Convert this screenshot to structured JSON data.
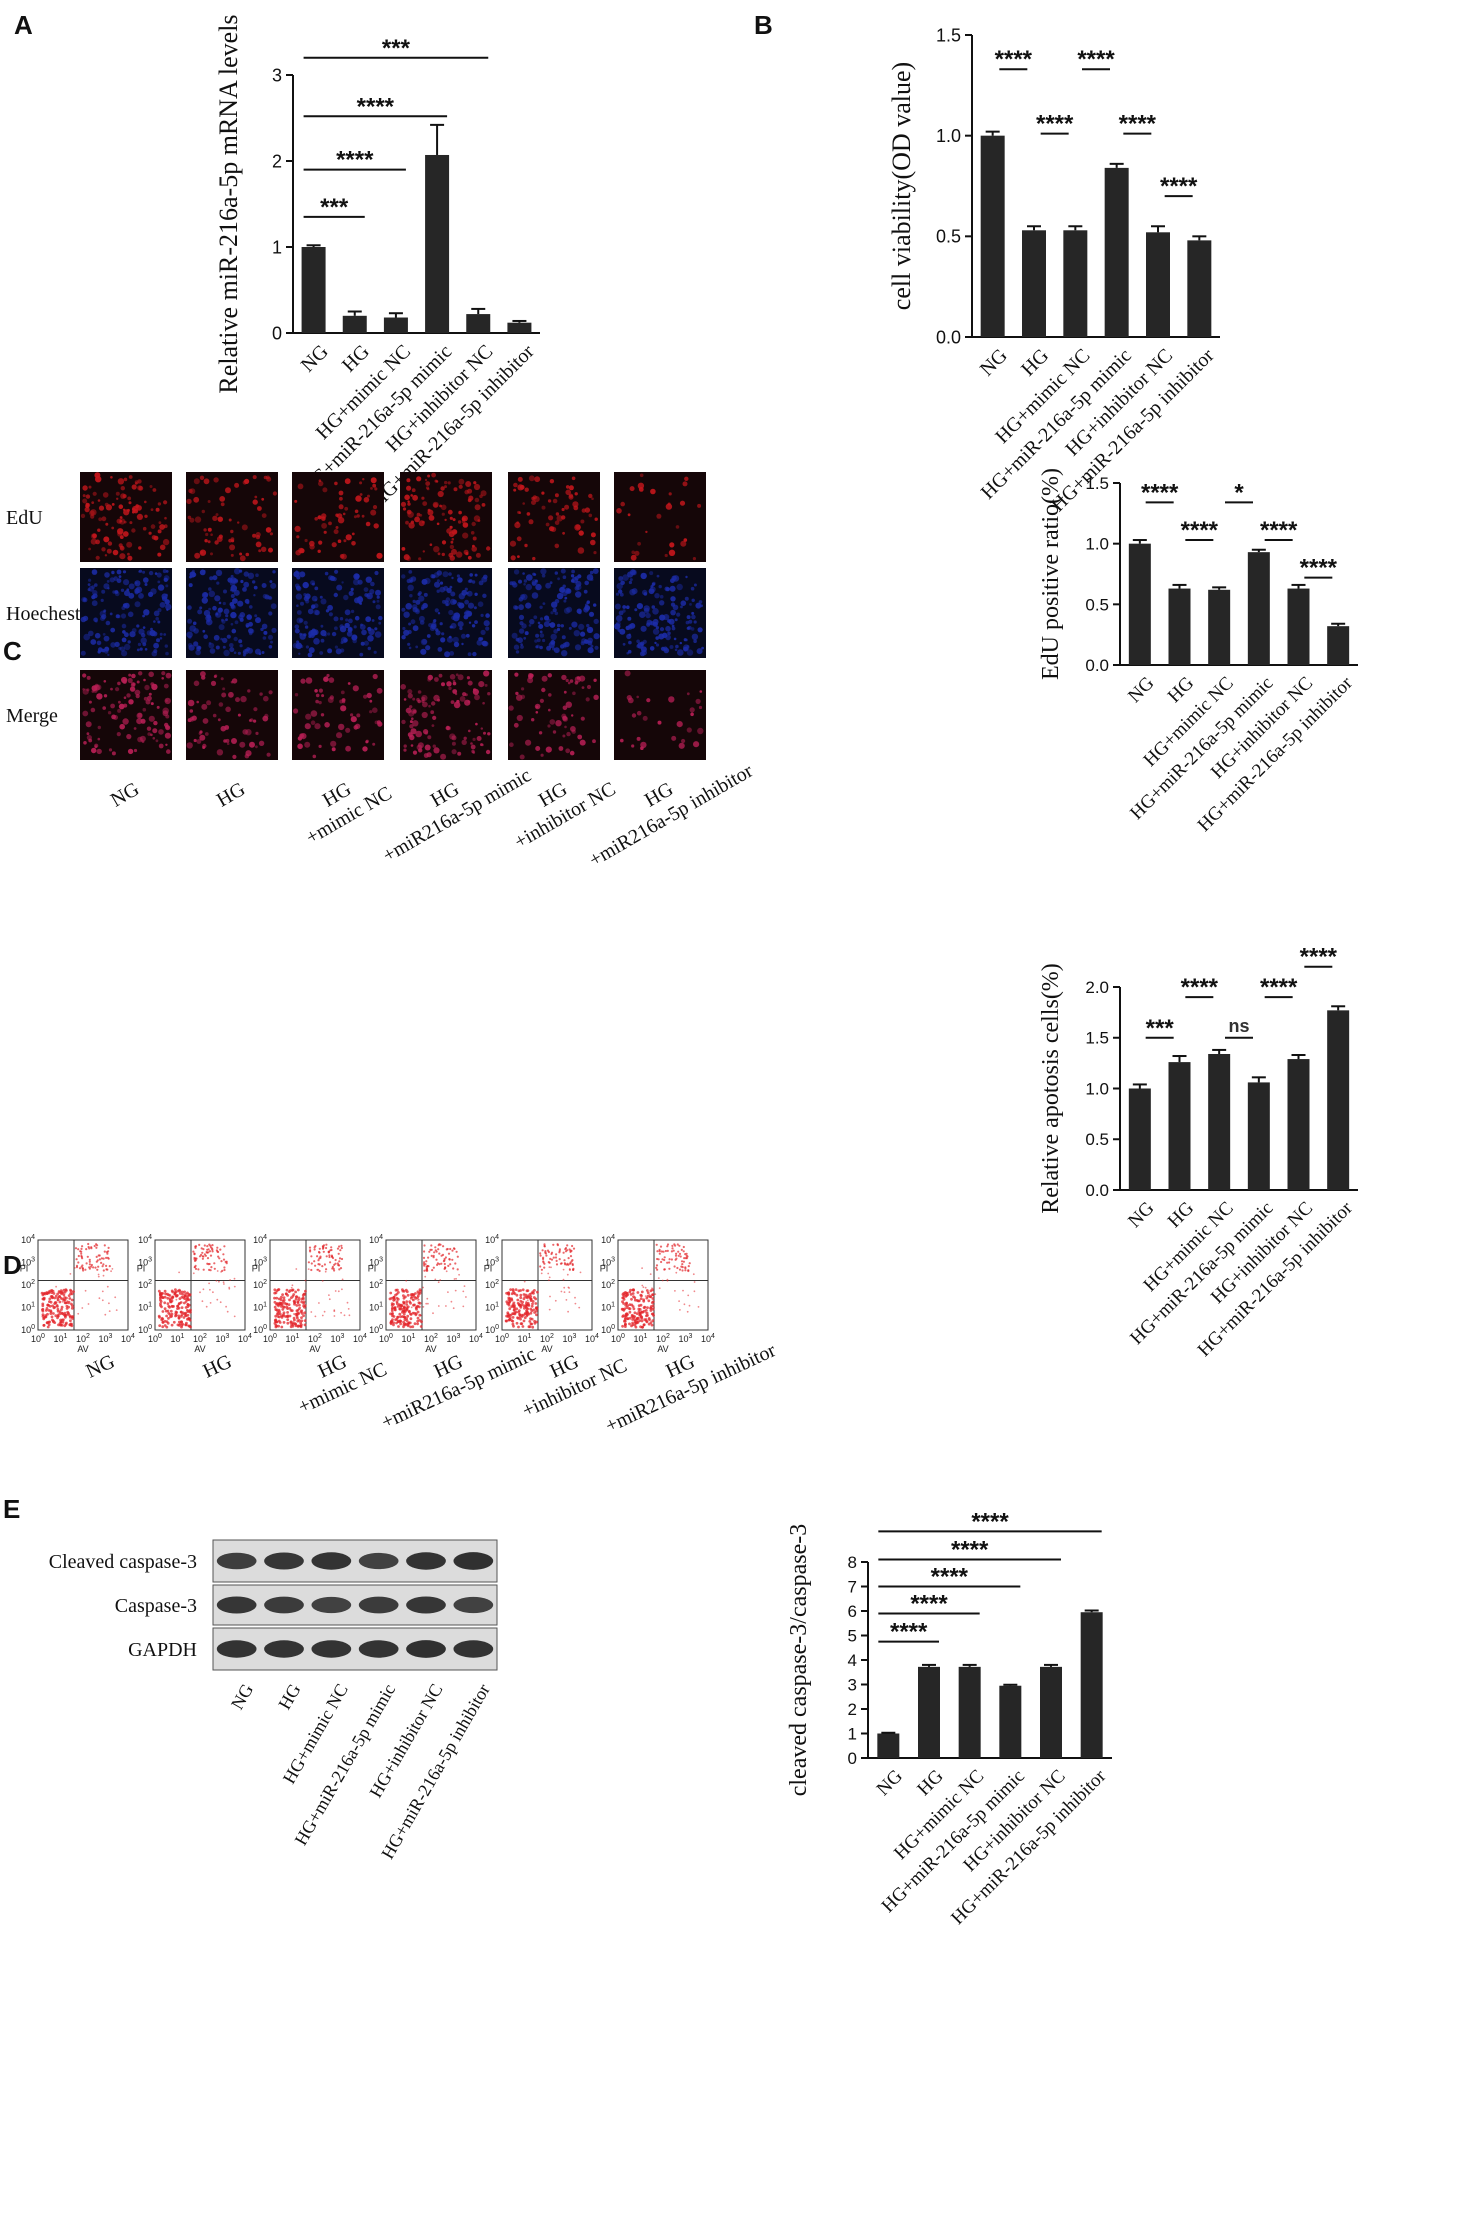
{
  "panel_labels": [
    "A",
    "B",
    "C",
    "D",
    "E"
  ],
  "colors": {
    "bar": "#262626",
    "edu": "#c4161c",
    "hoechst": "#1c2ca8",
    "merge": "#b81f55",
    "dot": "#e3262b",
    "blot_bg": "#dcdcdc",
    "blot_band": "#222222"
  },
  "chart_data": [
    {
      "id": "A",
      "type": "bar",
      "ylabel": "Relative miR-216a-5p mRNA levels",
      "xlabel": "",
      "ylim": [
        0,
        3
      ],
      "yticks": [
        0,
        1,
        2,
        3
      ],
      "ytick_labels": [
        "0",
        "1",
        "2",
        "3"
      ],
      "categories": [
        "NG",
        "HG",
        "HG+mimic NC",
        "HG+miR-216a-5p mimic",
        "HG+inhibitor NC",
        "HG+miR-216a-5p inhibitor"
      ],
      "values": [
        1.0,
        0.2,
        0.18,
        2.07,
        0.22,
        0.12
      ],
      "errors": [
        0.02,
        0.05,
        0.05,
        0.35,
        0.06,
        0.02
      ],
      "significance": [
        {
          "from": 0,
          "to": 1,
          "label": "***",
          "level": 1.35
        },
        {
          "from": 0,
          "to": 2,
          "label": "****",
          "level": 1.9
        },
        {
          "from": 0,
          "to": 3,
          "label": "****",
          "level": 2.52
        },
        {
          "from": 0,
          "to": 4,
          "label": "***",
          "level": 3.2
        },
        {
          "from": 0,
          "to": 5,
          "label": "****",
          "level": 3.9
        }
      ]
    },
    {
      "id": "B",
      "type": "bar",
      "ylabel": "cell viability(OD value)",
      "xlabel": "",
      "ylim": [
        0,
        1.5
      ],
      "yticks": [
        0,
        0.5,
        1.0,
        1.5
      ],
      "ytick_labels": [
        "0.0",
        "0.5",
        "1.0",
        "1.5"
      ],
      "categories": [
        "NG",
        "HG",
        "HG+mimic NC",
        "HG+miR-216a-5p mimic",
        "HG+inhibitor NC",
        "HG+miR-216a-5p inhibitor"
      ],
      "values": [
        1.0,
        0.53,
        0.53,
        0.84,
        0.52,
        0.48
      ],
      "errors": [
        0.02,
        0.02,
        0.02,
        0.02,
        0.03,
        0.02
      ],
      "significance": [
        {
          "from": 0,
          "to": 1,
          "label": "****",
          "level": 1.33
        },
        {
          "from": 1,
          "to": 2,
          "label": "****",
          "level": 1.01
        },
        {
          "from": 2,
          "to": 3,
          "label": "****",
          "level": 1.33
        },
        {
          "from": 3,
          "to": 4,
          "label": "****",
          "level": 1.01
        },
        {
          "from": 4,
          "to": 5,
          "label": "****",
          "level": 0.7
        }
      ]
    },
    {
      "id": "C",
      "type": "bar",
      "ylabel": "EdU positive ratio(%)",
      "xlabel": "",
      "ylim": [
        0,
        1.5
      ],
      "yticks": [
        0,
        0.5,
        1.0,
        1.5
      ],
      "ytick_labels": [
        "0.0",
        "0.5",
        "1.0",
        "1.5"
      ],
      "categories": [
        "NG",
        "HG",
        "HG+mimic NC",
        "HG+miR-216a-5p mimic",
        "HG+inhibitor NC",
        "HG+miR-216a-5p inhibitor"
      ],
      "values": [
        1.0,
        0.63,
        0.62,
        0.93,
        0.63,
        0.32
      ],
      "errors": [
        0.03,
        0.03,
        0.02,
        0.02,
        0.03,
        0.02
      ],
      "significance": [
        {
          "from": 0,
          "to": 1,
          "label": "****",
          "level": 1.34
        },
        {
          "from": 1,
          "to": 2,
          "label": "****",
          "level": 1.03
        },
        {
          "from": 2,
          "to": 3,
          "label": "*",
          "level": 1.34
        },
        {
          "from": 3,
          "to": 4,
          "label": "****",
          "level": 1.03
        },
        {
          "from": 4,
          "to": 5,
          "label": "****",
          "level": 0.72
        }
      ]
    },
    {
      "id": "D",
      "type": "bar",
      "ylabel": "Relative apotosis cells(%)",
      "xlabel": "",
      "ylim": [
        0,
        2.0
      ],
      "yticks": [
        0,
        0.5,
        1.0,
        1.5,
        2.0
      ],
      "ytick_labels": [
        "0.0",
        "0.5",
        "1.0",
        "1.5",
        "2.0"
      ],
      "categories": [
        "NG",
        "HG",
        "HG+mimic NC",
        "HG+miR-216a-5p mimic",
        "HG+inhibitor NC",
        "HG+miR-216a-5p inhibitor"
      ],
      "values": [
        1.0,
        1.26,
        1.34,
        1.06,
        1.29,
        1.77
      ],
      "errors": [
        0.04,
        0.06,
        0.04,
        0.05,
        0.04,
        0.04
      ],
      "significance": [
        {
          "from": 0,
          "to": 1,
          "label": "***",
          "level": 1.5
        },
        {
          "from": 1,
          "to": 2,
          "label": "****",
          "level": 1.9
        },
        {
          "from": 2,
          "to": 3,
          "label": "ns",
          "level": 1.5
        },
        {
          "from": 3,
          "to": 4,
          "label": "****",
          "level": 1.9
        },
        {
          "from": 4,
          "to": 5,
          "label": "****",
          "level": 2.2
        }
      ]
    },
    {
      "id": "E",
      "type": "bar",
      "ylabel": "cleaved caspase-3/caspase-3",
      "xlabel": "",
      "ylim": [
        0,
        8
      ],
      "yticks": [
        0,
        1,
        2,
        3,
        4,
        5,
        6,
        7,
        8
      ],
      "ytick_labels": [
        "0",
        "1",
        "2",
        "3",
        "4",
        "5",
        "6",
        "7",
        "8"
      ],
      "categories": [
        "NG",
        "HG",
        "HG+mimic NC",
        "HG+miR-216a-5p mimic",
        "HG+inhibitor NC",
        "HG+miR-216a-5p inhibitor"
      ],
      "values": [
        1.0,
        3.72,
        3.72,
        2.95,
        3.72,
        5.95
      ],
      "errors": [
        0.03,
        0.08,
        0.08,
        0.04,
        0.08,
        0.07
      ],
      "significance": [
        {
          "from": 0,
          "to": 1,
          "label": "****",
          "level": 4.75
        },
        {
          "from": 0,
          "to": 2,
          "label": "****",
          "level": 5.9
        },
        {
          "from": 0,
          "to": 3,
          "label": "****",
          "level": 7.0
        },
        {
          "from": 0,
          "to": 4,
          "label": "****",
          "level": 8.1
        },
        {
          "from": 0,
          "to": 5,
          "label": "****",
          "level": 9.25
        }
      ]
    }
  ],
  "microscopy": {
    "rows": [
      "EdU",
      "Hoechest",
      "Merge"
    ],
    "groups": [
      "NG",
      "HG",
      "HG\n+mimic NC",
      "HG\n+miR216a-5p mimic",
      "HG\n+inhibitor NC",
      "HG\n+miR216a-5p inhibitor"
    ],
    "intensity": [
      1.0,
      0.6,
      0.55,
      0.95,
      0.6,
      0.25
    ]
  },
  "flow": {
    "groups": [
      "NG",
      "HG",
      "HG\n+mimic NC",
      "HG\n+miR216a-5p mimic",
      "HG\n+inhibitor NC",
      "HG\n+miR216a-5p inhibitor"
    ],
    "xlabel": "AV",
    "ylabel": "PI",
    "tick_exponents": [
      "0",
      "1",
      "2",
      "3",
      "4"
    ]
  },
  "western": {
    "rows": [
      "Cleaved caspase-3",
      "Caspase-3",
      "GAPDH"
    ],
    "lanes": [
      "NG",
      "HG",
      "HG+mimic NC",
      "HG+miR-216a-5p mimic",
      "HG+inhibitor NC",
      "HG+miR-216a-5p inhibitor"
    ],
    "band_intensity": [
      [
        0.75,
        0.85,
        0.9,
        0.7,
        0.9,
        0.95
      ],
      [
        0.85,
        0.8,
        0.7,
        0.8,
        0.85,
        0.7
      ],
      [
        0.9,
        0.9,
        0.9,
        0.9,
        0.95,
        0.9
      ]
    ]
  }
}
